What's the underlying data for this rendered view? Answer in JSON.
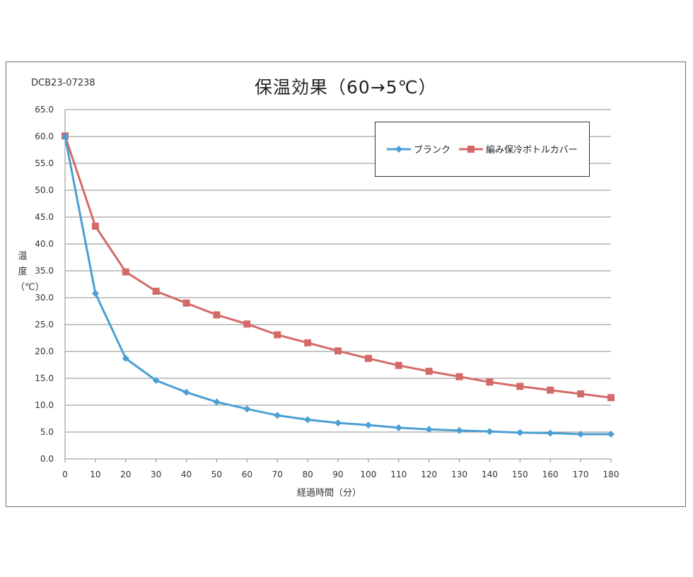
{
  "doc_id": "DCB23-07238",
  "chart_data": {
    "type": "line",
    "title": "保温効果（60→5℃）",
    "xlabel": "経過時間（分）",
    "ylabel": "温度（℃）",
    "x": [
      0,
      10,
      20,
      30,
      40,
      50,
      60,
      70,
      80,
      90,
      100,
      110,
      120,
      130,
      140,
      150,
      160,
      170,
      180
    ],
    "xlim": [
      0,
      180
    ],
    "ylim": [
      0,
      65
    ],
    "y_ticks": [
      "0.0",
      "5.0",
      "10.0",
      "15.0",
      "20.0",
      "25.0",
      "30.0",
      "35.0",
      "40.0",
      "45.0",
      "50.0",
      "55.0",
      "60.0",
      "65.0"
    ],
    "x_ticks": [
      "0",
      "10",
      "20",
      "30",
      "40",
      "50",
      "60",
      "70",
      "80",
      "90",
      "100",
      "110",
      "120",
      "130",
      "140",
      "150",
      "160",
      "170",
      "180"
    ],
    "grid": "horizontal",
    "legend_position": "top-right",
    "series": [
      {
        "name": "ブランク",
        "color": "#4a9fd3",
        "marker": "diamond",
        "values": [
          60.0,
          30.8,
          18.7,
          14.6,
          12.4,
          10.6,
          9.3,
          8.1,
          7.3,
          6.7,
          6.3,
          5.8,
          5.5,
          5.3,
          5.1,
          4.9,
          4.8,
          4.6,
          4.6
        ]
      },
      {
        "name": "編み保冷ボトルカバー",
        "color": "#d46a68",
        "marker": "square",
        "values": [
          60.1,
          43.3,
          34.8,
          31.2,
          29.0,
          26.8,
          25.1,
          23.1,
          21.6,
          20.1,
          18.7,
          17.4,
          16.3,
          15.3,
          14.3,
          13.5,
          12.8,
          12.1,
          11.4
        ]
      }
    ]
  }
}
